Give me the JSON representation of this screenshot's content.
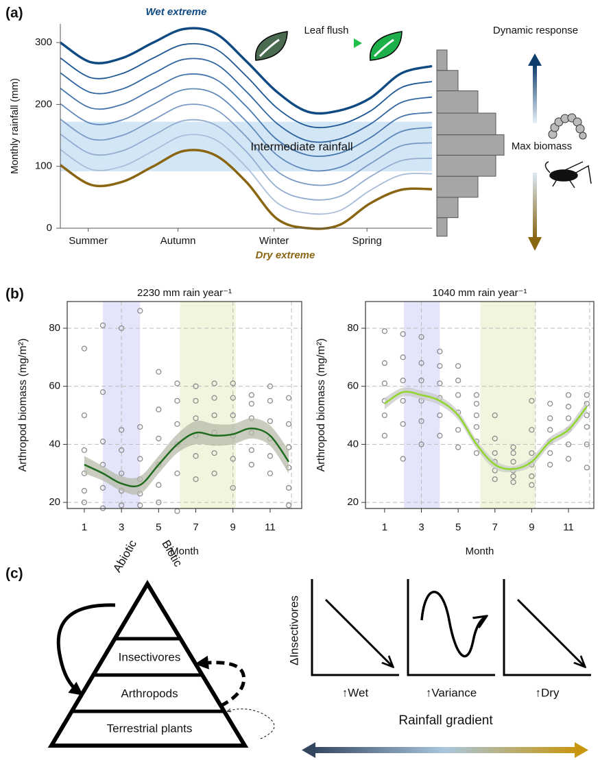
{
  "chart_data": [
    {
      "type": "line",
      "label": "(a)",
      "ylabel": "Monthly rainfall (mm)",
      "x": [
        0,
        1,
        2,
        3,
        4,
        5,
        6,
        7,
        8,
        9,
        10,
        11,
        12
      ],
      "xlim": [
        0,
        12
      ],
      "xticks": [
        {
          "value": 0.9,
          "label": "Summer"
        },
        {
          "value": 3.8,
          "label": "Autumn"
        },
        {
          "value": 6.9,
          "label": "Winter"
        },
        {
          "value": 9.9,
          "label": "Spring"
        }
      ],
      "ylim": [
        0,
        330
      ],
      "yticks": [
        0,
        100,
        200,
        300
      ],
      "series": [
        {
          "color": "#8a6512",
          "values": [
            102,
            70,
            75,
            100,
            125,
            118,
            75,
            15,
            0,
            5,
            40,
            62,
            63
          ]
        },
        {
          "color": "#a9bcd9",
          "values": [
            127,
            95,
            100,
            125,
            150,
            143,
            99,
            41,
            24,
            28,
            61,
            86,
            88
          ]
        },
        {
          "color": "#93acd0",
          "values": [
            152,
            120,
            125,
            150,
            174,
            167,
            124,
            66,
            47,
            51,
            83,
            109,
            113
          ]
        },
        {
          "color": "#7b9bc6",
          "values": [
            176,
            144,
            150,
            175,
            199,
            192,
            148,
            92,
            71,
            74,
            104,
            133,
            138
          ]
        },
        {
          "color": "#5f88bb",
          "values": [
            201,
            169,
            175,
            200,
            224,
            217,
            173,
            118,
            94,
            98,
            125,
            156,
            163
          ]
        },
        {
          "color": "#4676ae",
          "values": [
            226,
            194,
            200,
            225,
            248,
            241,
            197,
            143,
            118,
            121,
            146,
            180,
            187
          ]
        },
        {
          "color": "#2f65a0",
          "values": [
            251,
            219,
            225,
            250,
            273,
            266,
            221,
            169,
            141,
            144,
            168,
            203,
            212
          ]
        },
        {
          "color": "#1d5793",
          "values": [
            275,
            243,
            250,
            275,
            297,
            290,
            246,
            194,
            165,
            167,
            189,
            227,
            237
          ]
        },
        {
          "color": "#0f4a82",
          "values": [
            300,
            268,
            275,
            300,
            322,
            315,
            270,
            220,
            188,
            190,
            210,
            250,
            262
          ]
        }
      ],
      "band": {
        "range": [
          92,
          172
        ],
        "label": "Intermediate rainfall",
        "color": "#d3e6f6"
      },
      "histogram": {
        "bins": [
          -13,
          17,
          50,
          84,
          118,
          151,
          186,
          222,
          255,
          288
        ],
        "counts": [
          15,
          31,
          60,
          86,
          98,
          86,
          60,
          31,
          15
        ],
        "color": "#a6a6a6"
      },
      "annotations": {
        "wet": "Wet extreme",
        "dry": "Dry extreme",
        "leaf": "Leaf flush",
        "response": "Dynamic response",
        "max": "Max biomass"
      }
    },
    {
      "type": "scatter",
      "label": "(b)",
      "title": "2230 mm rain year⁻¹",
      "xlabel": "Month",
      "ylabel": "Arthropod biomass (mg/m²)",
      "xlim": [
        0.08,
        12.7
      ],
      "ylim": [
        17.9,
        89.2
      ],
      "xticks": [
        1,
        3,
        5,
        7,
        9,
        11
      ],
      "yticks": [
        20,
        40,
        60,
        80
      ],
      "vlines": [
        3,
        9,
        12.15
      ],
      "bands": [
        {
          "range": [
            2,
            4
          ],
          "color": "#e4e4fb"
        },
        {
          "range": [
            6.15,
            9.15
          ],
          "color": "#eff6dd"
        }
      ],
      "points": {
        "color": "#8c8c8c",
        "x": [
          1,
          1,
          1,
          1,
          1,
          1,
          2,
          2,
          2,
          2,
          2,
          2,
          3,
          3,
          3,
          3,
          3,
          3,
          4,
          4,
          4,
          4,
          4,
          4,
          5,
          5,
          5,
          5,
          5,
          5,
          6,
          6,
          6,
          6,
          6,
          6,
          7,
          7,
          7,
          7,
          7,
          7,
          8,
          8,
          8,
          8,
          8,
          8,
          9,
          9,
          9,
          9,
          9,
          9,
          10,
          10,
          10,
          10,
          10,
          10,
          11,
          11,
          11,
          11,
          11,
          11,
          12,
          12,
          12,
          12,
          12,
          12
        ],
        "y": [
          20,
          24,
          30,
          38,
          50,
          73,
          18,
          25,
          33,
          41,
          58,
          81,
          19,
          24,
          30,
          38,
          45,
          80,
          19,
          23,
          28,
          35,
          46,
          86,
          20,
          26,
          33,
          42,
          52,
          65,
          17,
          30,
          40,
          47,
          55,
          61,
          28,
          36,
          43,
          49,
          55,
          60,
          30,
          37,
          44,
          50,
          56,
          61,
          25,
          35,
          43,
          50,
          56,
          61,
          33,
          38,
          44,
          49,
          54,
          57,
          30,
          36,
          42,
          48,
          55,
          60,
          19,
          25,
          32,
          39,
          47,
          56
        ]
      },
      "smooth": {
        "color": "#1e6b1e",
        "ribbon_color": "#b7bba8",
        "x": [
          1,
          2,
          3,
          4,
          5,
          6,
          7,
          8,
          9,
          10,
          11,
          12
        ],
        "values": [
          33,
          30,
          26.5,
          26,
          33,
          40,
          44,
          43,
          43.5,
          45.5,
          43,
          34
        ],
        "lower": [
          30,
          27.5,
          24,
          23,
          30,
          37,
          40,
          39.5,
          40,
          42,
          39.5,
          30
        ],
        "upper": [
          36,
          32.5,
          29,
          29,
          36,
          43.5,
          48,
          47,
          47,
          49,
          46.5,
          38
        ]
      }
    },
    {
      "type": "scatter",
      "title": "1040 mm rain year⁻¹",
      "xlabel": "Month",
      "ylabel": "Arthropod biomass (mg/m²)",
      "xlim": [
        -0.04,
        12.38
      ],
      "ylim": [
        17.9,
        89.2
      ],
      "xticks": [
        1,
        3,
        5,
        7,
        9,
        11
      ],
      "yticks": [
        20,
        40,
        60,
        80
      ],
      "vlines": [
        3,
        9.2,
        12.15
      ],
      "bands": [
        {
          "range": [
            2.05,
            4
          ],
          "color": "#e4e4fb"
        },
        {
          "range": [
            6.2,
            9.2
          ],
          "color": "#eff6dd"
        }
      ],
      "points": {
        "color": "#8c8c8c",
        "x": [
          1,
          1,
          1,
          1,
          1,
          1,
          2,
          2,
          2,
          2,
          2,
          2,
          3,
          3,
          3,
          3,
          3,
          3,
          4,
          4,
          4,
          4,
          4,
          4,
          5,
          5,
          5,
          5,
          5,
          5,
          6,
          6,
          6,
          6,
          6,
          6,
          7,
          7,
          7,
          7,
          7,
          7,
          8,
          8,
          8,
          8,
          8,
          8,
          9,
          9,
          9,
          9,
          9,
          9,
          10,
          10,
          10,
          10,
          10,
          10,
          11,
          11,
          11,
          11,
          11,
          11,
          12,
          12,
          12,
          12,
          12,
          12
        ],
        "y": [
          43,
          50,
          55,
          61,
          68,
          79,
          35,
          47,
          55,
          62,
          70,
          78,
          40,
          48,
          55,
          62,
          68,
          77,
          43,
          50,
          56,
          61,
          67,
          72,
          39,
          45,
          51,
          57,
          62,
          67,
          37,
          41,
          46,
          50,
          54,
          57,
          28,
          31,
          34,
          37,
          42,
          50,
          27,
          29,
          31,
          34,
          37,
          39,
          26,
          29,
          33,
          37,
          45,
          55,
          33,
          37,
          41,
          45,
          49,
          54,
          35,
          40,
          45,
          49,
          53,
          57,
          32,
          40,
          46,
          50,
          54,
          57
        ]
      },
      "smooth": {
        "color": "#8fd62d",
        "ribbon_color": "#c9c9c9",
        "x": [
          1,
          2,
          3,
          4,
          5,
          6,
          7,
          8,
          9,
          10,
          11,
          12
        ],
        "values": [
          54,
          58,
          57,
          55,
          50,
          40,
          33,
          31.5,
          34,
          41,
          45,
          53
        ],
        "lower": [
          52,
          56.5,
          55.5,
          53.5,
          48.5,
          38.5,
          31.5,
          30.5,
          32.5,
          39.5,
          43.5,
          51
        ],
        "upper": [
          56,
          59.5,
          58.5,
          56.5,
          51.5,
          41.5,
          34.5,
          32.5,
          35.5,
          42.5,
          46.5,
          55
        ]
      }
    }
  ],
  "diagram": {
    "label": "(c)",
    "pyramid": {
      "left_edge": "Abiotic",
      "right_edge": "Biotic",
      "levels": [
        "Insectivores",
        "Arthropods",
        "Terrestrial plants"
      ]
    },
    "response_plots": {
      "y_label": "ΔInsectivores",
      "panels": [
        "↑Wet",
        "↑Variance",
        "↑Dry"
      ],
      "gradient_label": "Rainfall gradient"
    }
  }
}
